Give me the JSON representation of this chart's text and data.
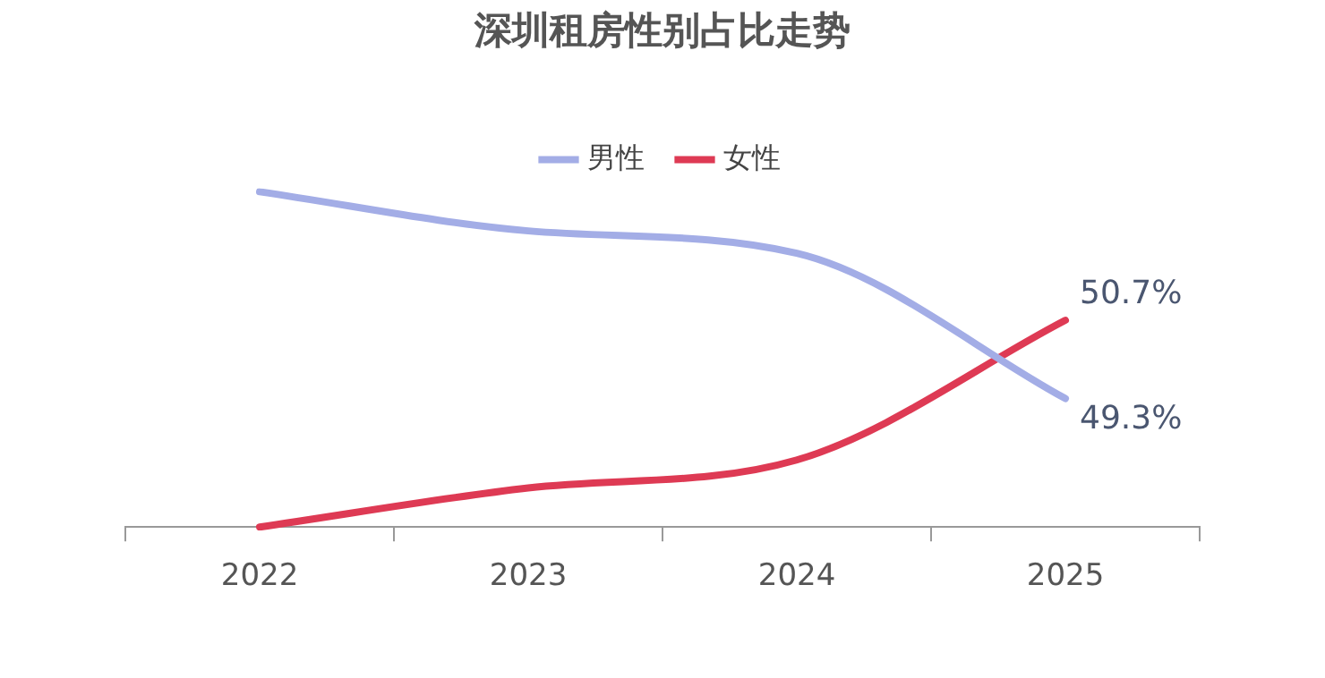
{
  "chart_data": {
    "type": "line",
    "title": "深圳租房性别占比走势",
    "categories": [
      "2022",
      "2023",
      "2024",
      "2025"
    ],
    "series": [
      {
        "name": "男性",
        "color": "#a3ade6",
        "values": [
          53.0,
          52.3,
          51.9,
          49.3
        ],
        "value_labels": [
          null,
          null,
          null,
          "49.3%"
        ]
      },
      {
        "name": "女性",
        "color": "#de3a54",
        "values": [
          47.0,
          47.7,
          48.2,
          50.7
        ],
        "value_labels": [
          null,
          null,
          null,
          "50.7%"
        ]
      }
    ],
    "tick_labels": "x",
    "legend": "top",
    "grid": false,
    "marker": "none",
    "line_style": "solid"
  }
}
